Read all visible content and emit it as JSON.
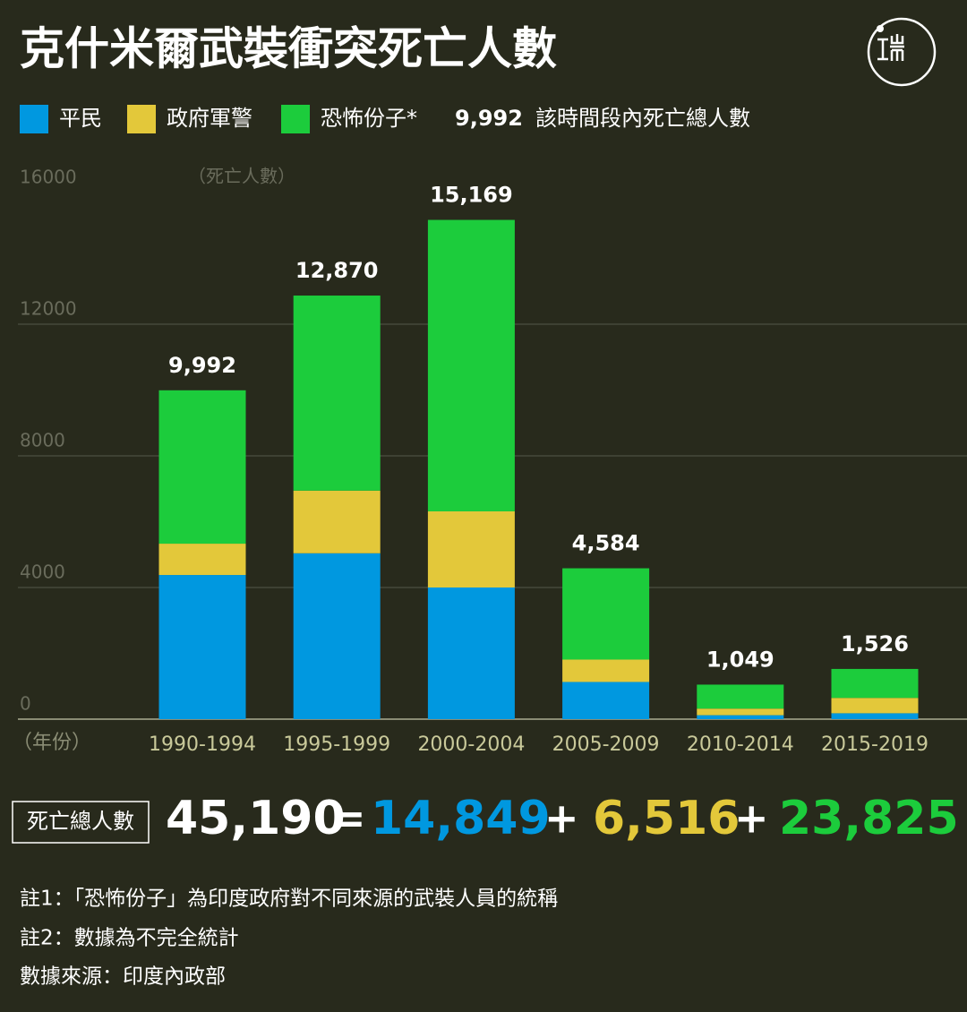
{
  "chart_data": {
    "type": "stacked-bar",
    "title": "克什米爾武裝衝突死亡人數",
    "total_legend": {
      "example": "9,992",
      "label": "該時間段內死亡總人數"
    },
    "y_label": "（死亡人數）",
    "x_label": "（年份）",
    "categories": [
      "1990-1994",
      "1995-1999",
      "2000-2004",
      "2005-2009",
      "2010-2014",
      "2015-2019"
    ],
    "series": [
      {
        "name": "平民",
        "color": "#0098e0",
        "values": [
          4380,
          5040,
          4000,
          1130,
          120,
          179
        ]
      },
      {
        "name": "政府軍警",
        "color": "#e3c83a",
        "values": [
          952,
          1904,
          2313,
          680,
          200,
          467
        ]
      },
      {
        "name": "恐怖份子*",
        "color": "#1ccc3c",
        "values": [
          4660,
          5926,
          8856,
          2774,
          729,
          880
        ]
      }
    ],
    "totals": [
      9992,
      12870,
      15169,
      4584,
      1049,
      1526
    ],
    "totals_labels": [
      "9,992",
      "12,870",
      "15,169",
      "4,584",
      "1,049",
      "1,526"
    ],
    "ylim": [
      0,
      16000
    ],
    "yticks": [
      0,
      4000,
      8000,
      12000,
      16000
    ],
    "grid": true,
    "summary": {
      "label": "死亡總人數",
      "total": "45,190",
      "equals": "=",
      "civilians": "14,849",
      "plus1": "+",
      "forces": "6,516",
      "plus2": "+",
      "militants": "23,825"
    },
    "notes": [
      "註1：「恐怖份子」為印度政府對不同來源的武裝人員的統稱",
      "註2：數據為不完全統計",
      "數據來源：印度內政部"
    ]
  }
}
